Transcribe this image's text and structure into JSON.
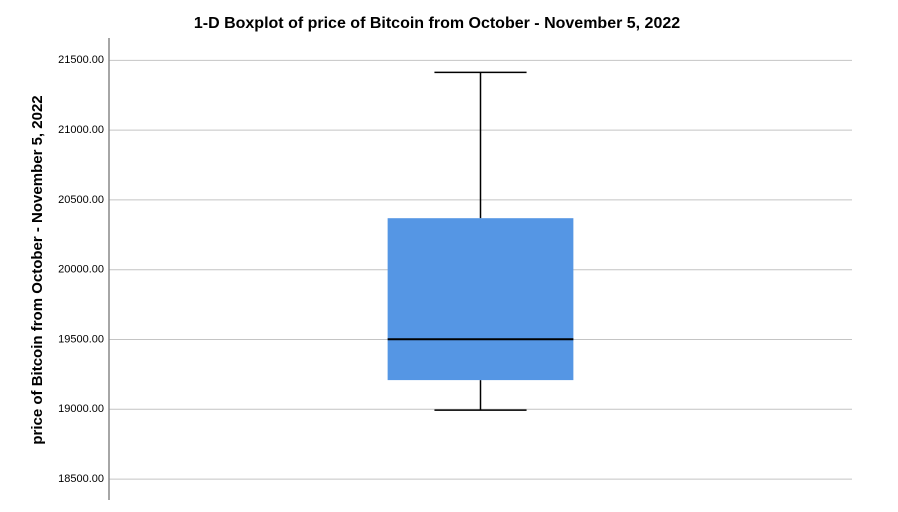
{
  "chart_data": {
    "type": "box",
    "title": "1-D Boxplot of price of Bitcoin from October - November 5, 2022",
    "y_label": "price of Bitcoin from October - November 5, 2022",
    "boxes": [
      {
        "min": 18994,
        "q1": 19209,
        "median": 19502,
        "q3": 20369,
        "max": 21414
      }
    ],
    "color": "#5596e4",
    "ylim": [
      18350,
      21660
    ],
    "yticks": [
      {
        "value": 18500,
        "label": "18500.00"
      },
      {
        "value": 19000,
        "label": "19000.00"
      },
      {
        "value": 19500,
        "label": "19500.00"
      },
      {
        "value": 20000,
        "label": "20000.00"
      },
      {
        "value": 20500,
        "label": "20500.00"
      },
      {
        "value": 21000,
        "label": "21000.00"
      },
      {
        "value": 21500,
        "label": "21500.00"
      }
    ],
    "grid": true
  }
}
